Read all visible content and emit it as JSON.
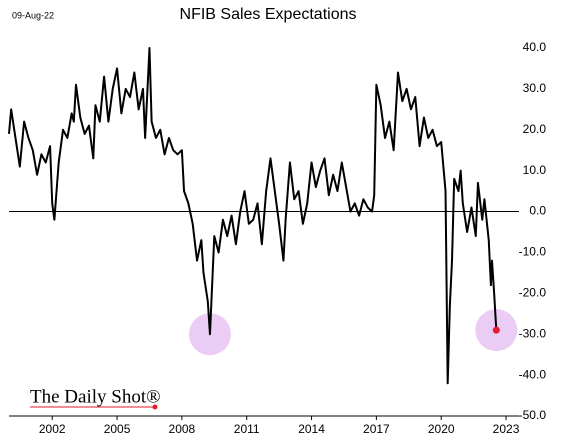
{
  "chart_data": {
    "type": "line",
    "title": "NFIB Sales Expectations",
    "date_label": "09-Aug-22",
    "source": "The Daily Shot®",
    "color": "#000000",
    "end_marker_color": "#e8192c",
    "highlight_color": "#e8c3f2",
    "xlim": [
      2000,
      2023.6
    ],
    "xticks": [
      2002,
      2005,
      2008,
      2011,
      2014,
      2017,
      2020,
      2023
    ],
    "ylim": [
      -50,
      40
    ],
    "yticks": [
      {
        "value": 40,
        "label": "40.0"
      },
      {
        "value": 30,
        "label": "30.0"
      },
      {
        "value": 20,
        "label": "20.0"
      },
      {
        "value": 10,
        "label": "10.0"
      },
      {
        "value": 0,
        "label": "0.0"
      },
      {
        "value": -10,
        "label": "-10.0"
      },
      {
        "value": -20,
        "label": "-20.0"
      },
      {
        "value": -30,
        "label": "-30.0"
      },
      {
        "value": -40,
        "label": "-40.0"
      },
      {
        "value": -50,
        "label": "-50.0"
      }
    ],
    "x": [
      2000.0,
      2000.1,
      2000.3,
      2000.5,
      2000.7,
      2000.9,
      2001.1,
      2001.3,
      2001.5,
      2001.7,
      2001.9,
      2002.0,
      2002.1,
      2002.3,
      2002.5,
      2002.7,
      2002.9,
      2003.0,
      2003.1,
      2003.3,
      2003.5,
      2003.7,
      2003.9,
      2004.0,
      2004.2,
      2004.4,
      2004.6,
      2004.8,
      2005.0,
      2005.2,
      2005.4,
      2005.6,
      2005.8,
      2006.0,
      2006.2,
      2006.3,
      2006.5,
      2006.6,
      2006.8,
      2007.0,
      2007.2,
      2007.4,
      2007.6,
      2007.8,
      2008.0,
      2008.1,
      2008.3,
      2008.5,
      2008.7,
      2008.9,
      2009.0,
      2009.2,
      2009.3,
      2009.5,
      2009.7,
      2009.9,
      2010.1,
      2010.3,
      2010.5,
      2010.7,
      2010.9,
      2011.1,
      2011.3,
      2011.5,
      2011.7,
      2011.9,
      2012.1,
      2012.3,
      2012.5,
      2012.7,
      2012.8,
      2013.0,
      2013.2,
      2013.4,
      2013.6,
      2013.8,
      2014.0,
      2014.2,
      2014.4,
      2014.6,
      2014.8,
      2015.0,
      2015.2,
      2015.4,
      2015.6,
      2015.8,
      2016.0,
      2016.2,
      2016.4,
      2016.6,
      2016.8,
      2016.9,
      2017.0,
      2017.2,
      2017.4,
      2017.6,
      2017.8,
      2018.0,
      2018.2,
      2018.4,
      2018.6,
      2018.8,
      2019.0,
      2019.2,
      2019.4,
      2019.6,
      2019.8,
      2020.0,
      2020.2,
      2020.3,
      2020.4,
      2020.5,
      2020.6,
      2020.8,
      2020.9,
      2021.0,
      2021.2,
      2021.4,
      2021.6,
      2021.7,
      2021.9,
      2022.0,
      2022.1,
      2022.2,
      2022.3,
      2022.35,
      2022.45,
      2022.55
    ],
    "values": [
      19,
      25,
      18,
      11,
      22,
      18,
      15,
      9,
      14,
      12,
      16,
      2,
      -2,
      12,
      20,
      18,
      24,
      22,
      31,
      23,
      19,
      21,
      13,
      26,
      22,
      33,
      22,
      30,
      35,
      24,
      30,
      28,
      34,
      25,
      30,
      18,
      40,
      22,
      18,
      20,
      14,
      18,
      15,
      14,
      15,
      5,
      2,
      -3,
      -12,
      -7,
      -15,
      -22,
      -30,
      -6,
      -10,
      -2,
      -6,
      -1,
      -8,
      0,
      5,
      -3,
      -2,
      2,
      -8,
      5,
      13,
      5,
      -3,
      -12,
      -2,
      12,
      3,
      5,
      -3,
      2,
      12,
      6,
      10,
      13,
      4,
      9,
      5,
      12,
      6,
      0,
      2,
      -1,
      3,
      1,
      0,
      4,
      31,
      26,
      18,
      22,
      15,
      34,
      27,
      30,
      25,
      28,
      16,
      23,
      18,
      20,
      16,
      17,
      5,
      -42,
      -23,
      -12,
      8,
      5,
      10,
      2,
      -5,
      1,
      -6,
      7,
      -2,
      3,
      -2,
      -7,
      -18,
      -12,
      -20,
      -29
    ]
  }
}
